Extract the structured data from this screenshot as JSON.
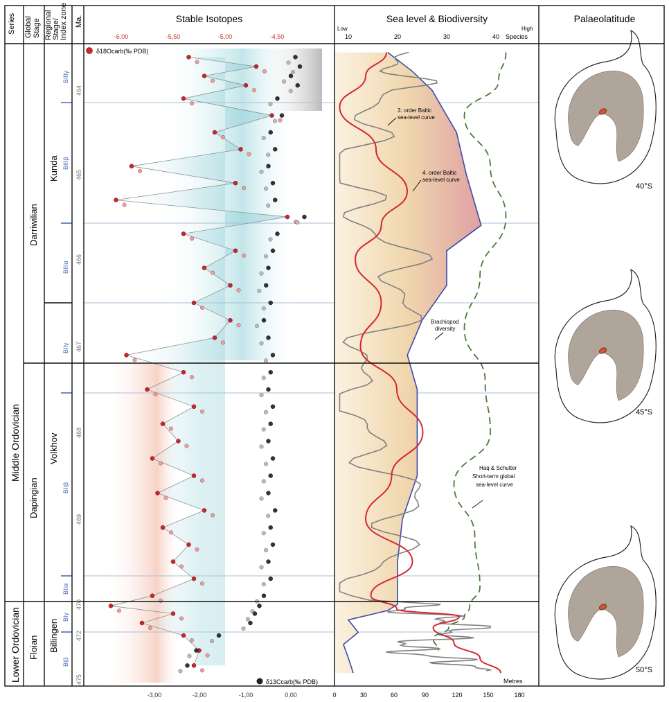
{
  "columns": {
    "series": "Series",
    "global_stage": "Global Stage",
    "regional_stage": "Regional Stage/ Index zone",
    "ma": "Ma.",
    "isotopes": "Stable Isotopes",
    "sea_level": "Sea level & Biodiversity",
    "palaeolatitude": "Palaeolatitude"
  },
  "series_units": [
    "Middle Ordovician",
    "Lower Ordovician"
  ],
  "global_stages": [
    "Darriwilian",
    "Dapingian",
    "Floian"
  ],
  "regional_stages": [
    "Kunda",
    "Volkhov",
    "Billingen"
  ],
  "index_zones": [
    "BIIIγ",
    "BIIIβ",
    "BIIIα",
    "BIIγ",
    "BIIβ",
    "BIIα",
    "BIγ",
    "BIβ"
  ],
  "ma_ticks": [
    "464",
    "465",
    "466",
    "467",
    "468",
    "469",
    "470",
    "472",
    "475"
  ],
  "oxygen_axis": {
    "label": "δ18Ocarb(‰ PDB)",
    "ticks": [
      "-6,00",
      "-5,50",
      "-5,00",
      "-4,50"
    ],
    "color": "#c0392b"
  },
  "carbon_axis": {
    "label": "δ13Ccarb(‰ PDB)",
    "ticks": [
      "-3,00",
      "-2,00",
      "-1,00",
      "0,00"
    ],
    "color": "#222222"
  },
  "sea_axis": {
    "top_low": "Low",
    "top_high": "High",
    "species_label": "Species",
    "species_ticks": [
      "10",
      "20",
      "30",
      "40"
    ],
    "bottom_ticks": [
      "0",
      "30",
      "60",
      "90",
      "120",
      "150",
      "180"
    ],
    "metres_label": "Metres"
  },
  "annotations": {
    "third_order": "3. order Baltic sea-level curve",
    "fourth_order": "4. order Baltic sea-level curve",
    "brachiopod": "Brachiopod diversity",
    "haq": "Haq & Schutter Short-term global sea-level curve"
  },
  "palaeolatitudes": [
    "40°S",
    "45°S",
    "50°S"
  ],
  "colors": {
    "oxygen_point": "#c8262c",
    "carbon_point": "#333333",
    "third_order_curve": "#d7262e",
    "fourth_order_curve": "#808080",
    "haq_curve": "#4a7a3a",
    "brachiopod_line": "#3a4aa8",
    "grid_line": "#a9bfd6",
    "land": "#b0a59a",
    "teal": "#7cc7d1",
    "orange": "#e06a3a"
  },
  "chart_data": {
    "type": "line",
    "y_axis": "Ma.",
    "oxygen_series": {
      "name": "δ18Ocarb(‰ PDB)",
      "age": [
        463.3,
        463.5,
        463.7,
        463.9,
        464.1,
        464.3,
        464.5,
        464.7,
        464.9,
        465.1,
        465.3,
        465.5,
        465.7,
        465.9,
        466.1,
        466.3,
        466.5,
        466.7,
        466.9,
        467.1,
        467.3,
        467.5,
        467.7,
        467.9,
        468.1,
        468.3,
        468.5,
        468.7,
        468.9,
        469.1,
        469.3,
        469.5,
        469.7,
        469.9,
        470.1,
        470.6,
        471.2,
        472.0,
        473.0,
        474.0
      ],
      "d18O": [
        -5.35,
        -4.7,
        -5.2,
        -4.8,
        -5.4,
        -4.55,
        -5.1,
        -4.85,
        -5.9,
        -4.9,
        -6.05,
        -4.4,
        -5.4,
        -4.9,
        -5.2,
        -4.95,
        -5.3,
        -4.95,
        -5.1,
        -5.95,
        -5.4,
        -5.75,
        -5.3,
        -5.6,
        -5.45,
        -5.7,
        -5.3,
        -5.65,
        -5.2,
        -5.6,
        -5.35,
        -5.5,
        -5.3,
        -5.7,
        -6.1,
        -5.5,
        -5.8,
        -5.4,
        -5.25,
        -5.3
      ]
    },
    "carbon_series": {
      "name": "δ13Ccarb(‰ PDB)",
      "age": [
        463.3,
        463.5,
        463.7,
        463.9,
        464.1,
        464.3,
        464.5,
        464.7,
        464.9,
        465.1,
        465.3,
        465.5,
        465.7,
        465.9,
        466.1,
        466.3,
        466.5,
        466.7,
        466.9,
        467.1,
        467.3,
        467.5,
        467.7,
        467.9,
        468.1,
        468.3,
        468.5,
        468.7,
        468.9,
        469.1,
        469.3,
        469.5,
        469.7,
        469.9,
        470.1,
        470.6,
        471.2,
        472.0,
        473.0,
        474.0
      ],
      "d13C": [
        0.1,
        0.2,
        0.0,
        0.15,
        -0.3,
        -0.2,
        -0.45,
        -0.35,
        -0.5,
        -0.4,
        -0.35,
        0.3,
        -0.3,
        -0.4,
        -0.5,
        -0.55,
        -0.45,
        -0.6,
        -0.5,
        -0.4,
        -0.45,
        -0.5,
        -0.4,
        -0.45,
        -0.5,
        -0.4,
        -0.45,
        -0.5,
        -0.35,
        -0.45,
        -0.4,
        -0.5,
        -0.45,
        -0.6,
        -0.7,
        -0.8,
        -0.9,
        -1.6,
        -2.1,
        -2.3
      ]
    },
    "sea_level_3rd": {
      "name": "3. order Baltic sea-level curve",
      "age": [
        463.2,
        463.7,
        464.2,
        464.7,
        465.2,
        465.6,
        466.0,
        466.5,
        467.0,
        467.5,
        468.0,
        468.5,
        469.0,
        469.5,
        469.9,
        470.3,
        470.8,
        471.5,
        472.5,
        473.5,
        474.5
      ],
      "metres": [
        50,
        30,
        5,
        40,
        70,
        45,
        20,
        45,
        25,
        60,
        85,
        55,
        30,
        75,
        35,
        60,
        120,
        95,
        115,
        140,
        160
      ]
    },
    "brachiopod_diversity": {
      "name": "Brachiopod diversity",
      "age": [
        463.2,
        463.6,
        464.0,
        464.5,
        465.0,
        465.6,
        465.9,
        466.3,
        466.7,
        467.1,
        467.5,
        468.0,
        468.5,
        469.0,
        469.5,
        470.0,
        470.4,
        471.0,
        471.8,
        472.6,
        473.5,
        474.5
      ],
      "species": [
        18,
        23,
        27,
        32,
        34,
        37,
        30,
        30,
        25,
        22,
        24,
        24,
        24,
        21,
        20,
        20,
        18,
        10,
        12,
        9,
        10,
        11
      ]
    },
    "haq_schutter": {
      "name": "Haq & Schutter Short-term global sea-level curve",
      "age": [
        463.2,
        463.8,
        464.3,
        464.9,
        465.5,
        466.2,
        466.8,
        467.4,
        468.0,
        468.6,
        469.2,
        469.8,
        470.2,
        470.8,
        471.5,
        472.2,
        473.0
      ],
      "metres": [
        165,
        158,
        125,
        150,
        165,
        140,
        125,
        145,
        150,
        115,
        135,
        140,
        130,
        125,
        110,
        95,
        100
      ]
    }
  }
}
